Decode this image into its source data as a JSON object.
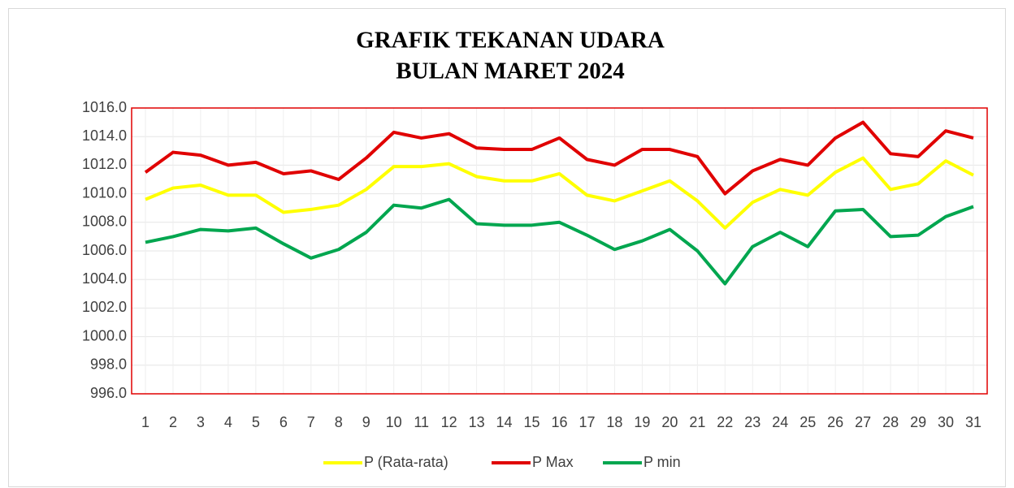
{
  "chart_data": {
    "type": "line",
    "title": "GRAFIK TEKANAN UDARA",
    "subtitle": "BULAN MARET 2024",
    "categories": [
      "1",
      "2",
      "3",
      "4",
      "5",
      "6",
      "7",
      "8",
      "9",
      "10",
      "11",
      "12",
      "13",
      "14",
      "15",
      "16",
      "17",
      "18",
      "19",
      "20",
      "21",
      "22",
      "23",
      "24",
      "25",
      "26",
      "27",
      "28",
      "29",
      "30",
      "31"
    ],
    "series": [
      {
        "name": "P (Rata-rata)",
        "color": "#ffff00",
        "values": [
          1009.6,
          1010.4,
          1010.6,
          1009.9,
          1009.9,
          1008.7,
          1008.9,
          1009.2,
          1010.3,
          1011.9,
          1011.9,
          1012.1,
          1011.2,
          1010.9,
          1010.9,
          1011.4,
          1009.9,
          1009.5,
          1010.2,
          1010.9,
          1009.5,
          1007.6,
          1009.4,
          1010.3,
          1009.9,
          1011.5,
          1012.5,
          1010.3,
          1010.7,
          1012.3,
          1011.3
        ]
      },
      {
        "name": "P Max",
        "color": "#e00000",
        "values": [
          1011.5,
          1012.9,
          1012.7,
          1012.0,
          1012.2,
          1011.4,
          1011.6,
          1011.0,
          1012.5,
          1014.3,
          1013.9,
          1014.2,
          1013.2,
          1013.1,
          1013.1,
          1013.9,
          1012.4,
          1012.0,
          1013.1,
          1013.1,
          1012.6,
          1010.0,
          1011.6,
          1012.4,
          1012.0,
          1013.9,
          1015.0,
          1012.8,
          1012.6,
          1014.4,
          1013.9
        ]
      },
      {
        "name": "P min",
        "color": "#00a64f",
        "values": [
          1006.6,
          1007.0,
          1007.5,
          1007.4,
          1007.6,
          1006.5,
          1005.5,
          1006.1,
          1007.3,
          1009.2,
          1009.0,
          1009.6,
          1007.9,
          1007.8,
          1007.8,
          1008.0,
          1007.1,
          1006.1,
          1006.7,
          1007.5,
          1006.0,
          1003.7,
          1006.3,
          1007.3,
          1006.3,
          1008.8,
          1008.9,
          1007.0,
          1007.1,
          1008.4,
          1009.1
        ]
      }
    ],
    "ylim": [
      996,
      1016
    ],
    "yticks": [
      {
        "value": 996,
        "label": "996.0"
      },
      {
        "value": 998,
        "label": "998.0"
      },
      {
        "value": 1000,
        "label": "1000.0"
      },
      {
        "value": 1002,
        "label": "1002.0"
      },
      {
        "value": 1004,
        "label": "1004.0"
      },
      {
        "value": 1006,
        "label": "1006.0"
      },
      {
        "value": 1008,
        "label": "1008.0"
      },
      {
        "value": 1010,
        "label": "1010.0"
      },
      {
        "value": 1012,
        "label": "1012.0"
      },
      {
        "value": 1014,
        "label": "1014.0"
      },
      {
        "value": 1016,
        "label": "1016.0"
      }
    ],
    "grid": true,
    "legend": "bottom"
  }
}
